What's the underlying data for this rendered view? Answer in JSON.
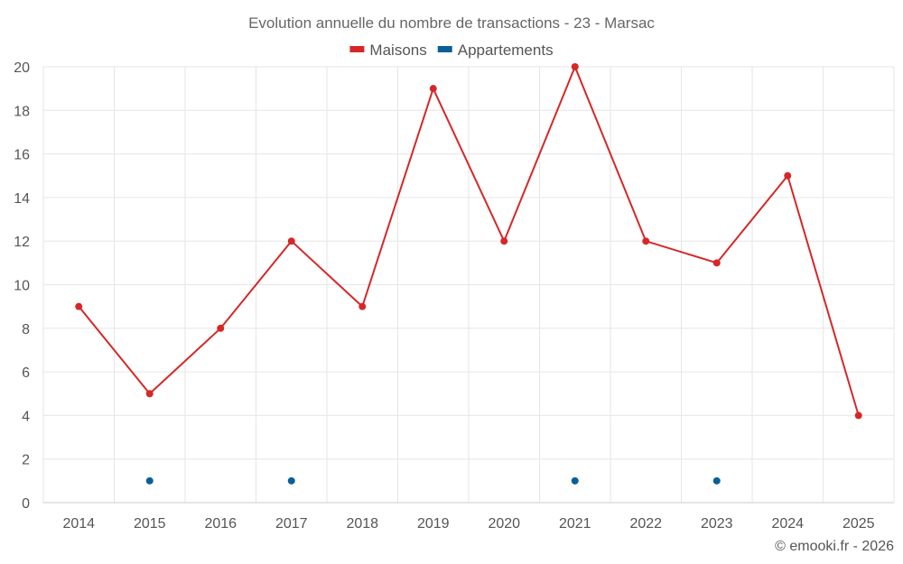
{
  "chart_data": {
    "type": "line",
    "title": "Evolution annuelle du nombre de transactions - 23 - Marsac",
    "categories": [
      "2014",
      "2015",
      "2016",
      "2017",
      "2018",
      "2019",
      "2020",
      "2021",
      "2022",
      "2023",
      "2024",
      "2025"
    ],
    "ylim": [
      0,
      20
    ],
    "yticks": [
      0,
      2,
      4,
      6,
      8,
      10,
      12,
      14,
      16,
      18,
      20
    ],
    "grid": true,
    "legend_position": "top-center",
    "series": [
      {
        "name": "Maisons",
        "color": "#d62728",
        "values": [
          9,
          5,
          8,
          12,
          9,
          19,
          12,
          20,
          12,
          11,
          15,
          4
        ]
      },
      {
        "name": "Appartements",
        "color": "#0b5f99",
        "values": [
          null,
          1,
          null,
          1,
          null,
          null,
          null,
          1,
          null,
          1,
          null,
          null
        ]
      }
    ]
  },
  "credit": "© emooki.fr - 2026"
}
